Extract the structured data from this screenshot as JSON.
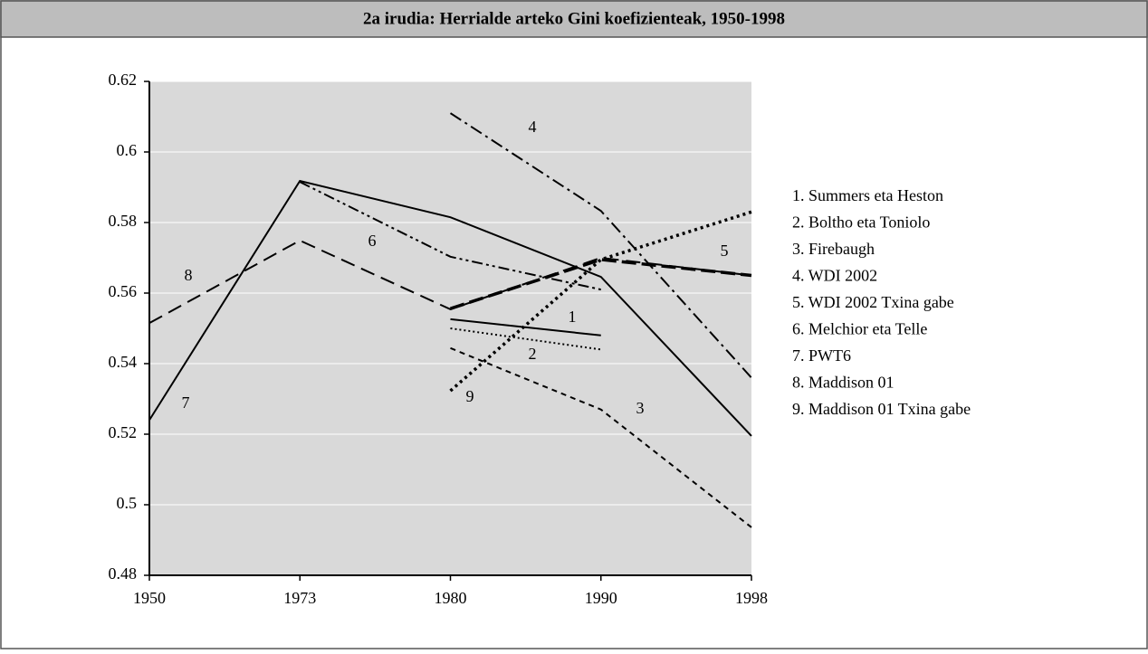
{
  "chart_data": {
    "type": "line",
    "title": "2a irudia: Herrialde arteko Gini koefizienteak, 1950-1998",
    "categories": [
      "1950",
      "1973",
      "1980",
      "1990",
      "1998"
    ],
    "ylim": [
      0.48,
      0.62
    ],
    "yticks": [
      0.48,
      0.5,
      0.52,
      0.54,
      0.56,
      0.58,
      0.6,
      0.62
    ],
    "grid": true,
    "legend": "right",
    "series": [
      {
        "name": "1. Summers eta Heston",
        "color": "#000000",
        "dash": "solid",
        "values": [
          null,
          null,
          0.5526,
          0.548,
          null
        ]
      },
      {
        "name": "2. Boltho eta Toniolo",
        "color": "#000000",
        "dash": "dotted",
        "values": [
          null,
          null,
          0.55,
          0.544,
          null
        ]
      },
      {
        "name": "3. Firebaugh",
        "color": "#000000",
        "dash": "short-dash",
        "values": [
          null,
          null,
          0.5444,
          0.527,
          0.4936
        ]
      },
      {
        "name": "4. WDI 2002",
        "color": "#000000",
        "dash": "dash-dot",
        "values": [
          null,
          null,
          0.611,
          0.5833,
          0.536
        ]
      },
      {
        "name": "5. WDI 2002 Txina gabe",
        "color": "#000000",
        "dash": "long-dash-bold",
        "values": [
          null,
          null,
          0.5556,
          0.5695,
          0.565
        ]
      },
      {
        "name": "6. Melchior eta Telle",
        "color": "#000000",
        "dash": "dash-dot-dot",
        "values": [
          null,
          0.5915,
          0.5703,
          0.561,
          null
        ]
      },
      {
        "name": "7. PWT6",
        "color": "#000000",
        "dash": "solid",
        "values": [
          0.524,
          0.5918,
          0.5815,
          0.5646,
          0.5195
        ]
      },
      {
        "name": "8. Maddison 01",
        "color": "#000000",
        "dash": "long-dash",
        "values": [
          0.5515,
          0.5749,
          0.5554,
          0.57,
          0.565
        ]
      },
      {
        "name": "9. Maddison 01 Txina gabe",
        "color": "#000000",
        "dash": "dotted-bold",
        "values": [
          null,
          null,
          0.5323,
          0.5695,
          0.583
        ]
      }
    ],
    "annotations": [
      "1",
      "2",
      "3",
      "4",
      "5",
      "6",
      "7",
      "8",
      "9"
    ]
  }
}
